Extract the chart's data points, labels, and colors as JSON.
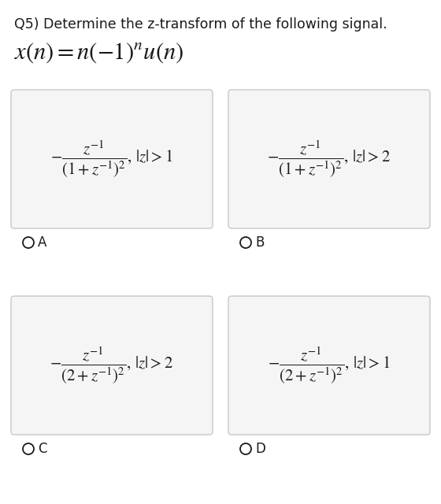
{
  "title_line1": "Q5) Determine the z-transform of the following signal.",
  "options": [
    {
      "label": "A",
      "formula": "$-\\dfrac{z^{-1}}{(1+z^{-1})^2},\\,|z|>1$",
      "roc_val": "1"
    },
    {
      "label": "B",
      "formula": "$-\\dfrac{z^{-1}}{(1+z^{-1})^2},\\,|z|>2$",
      "roc_val": "2"
    },
    {
      "label": "C",
      "formula": "$-\\dfrac{z^{-1}}{(2+z^{-1})^2},\\,|z|>2$",
      "roc_val": "2"
    },
    {
      "label": "D",
      "formula": "$-\\dfrac{z^{-1}}{(2+z^{-1})^2},\\,|z|>1$",
      "roc_val": "1"
    }
  ],
  "bg_color": "#ffffff",
  "box_facecolor": "#f5f5f5",
  "box_edgecolor": "#c8c8c8",
  "text_color": "#1a1a1a",
  "title_fontsize": 12.5,
  "eq_fontsize": 22,
  "formula_fontsize": 15,
  "label_fontsize": 12
}
